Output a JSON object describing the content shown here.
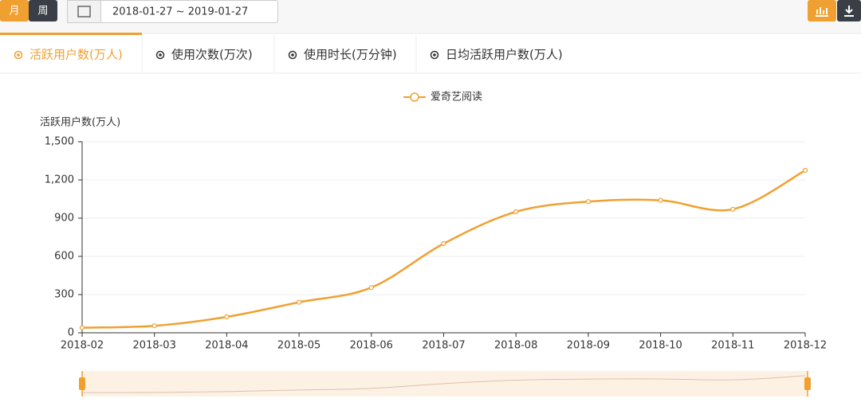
{
  "toolbar": {
    "month": "月",
    "week": "周",
    "date_range": "2018-01-27 ~ 2019-01-27"
  },
  "tabs": [
    "活跃用户数(万人)",
    "使用次数(万次)",
    "使用时长(万分钟)",
    "日均活跃用户数(万人)"
  ],
  "chart_data": {
    "type": "line",
    "y_label": "活跃用户数(万人)",
    "categories": [
      "2018-02",
      "2018-03",
      "2018-04",
      "2018-05",
      "2018-06",
      "2018-07",
      "2018-08",
      "2018-09",
      "2018-10",
      "2018-11",
      "2018-12"
    ],
    "series": [
      {
        "name": "爱奇艺阅读",
        "color": "#f0a030",
        "values": [
          40,
          55,
          125,
          240,
          355,
          700,
          950,
          1030,
          1040,
          970,
          1275
        ]
      }
    ],
    "ylim": [
      0,
      1500
    ],
    "yticks": [
      0,
      300,
      600,
      900,
      {
        "value": 1200,
        "label": "1,200"
      },
      {
        "value": 1500,
        "label": "1,500"
      }
    ],
    "grid": true,
    "legend": "top"
  }
}
